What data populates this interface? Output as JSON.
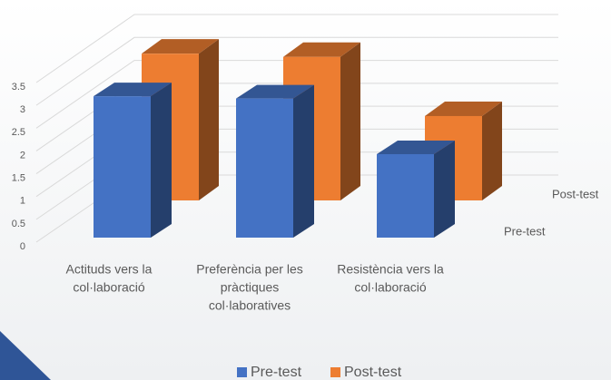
{
  "chart_data": {
    "type": "bar3d",
    "categories": [
      [
        "Actituds vers la",
        "col·laboració"
      ],
      [
        "Preferència per les",
        "pràctiques",
        "col·laboratives"
      ],
      [
        "Resistència vers la",
        "col·laboració"
      ]
    ],
    "series": [
      {
        "name": "Pre-test",
        "color": "#4472c4",
        "values": [
          3.1,
          3.05,
          1.83
        ]
      },
      {
        "name": "Post-test",
        "color": "#ed7d31",
        "values": [
          3.2,
          3.13,
          1.84
        ]
      }
    ],
    "ylim": [
      0,
      3.5
    ],
    "yticks": [
      0,
      0.5,
      1,
      1.5,
      2,
      2.5,
      3,
      3.5
    ],
    "grid": true
  }
}
